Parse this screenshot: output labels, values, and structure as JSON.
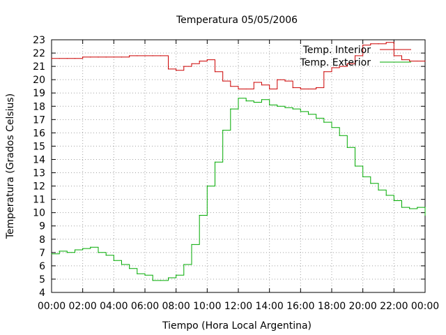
{
  "chart_data": {
    "type": "line",
    "title": "Temperatura 05/05/2006",
    "xlabel": "Tiempo (Hora Local Argentina)",
    "ylabel": "Temperatura (Grados Celsius)",
    "xlim": [
      0,
      24
    ],
    "ylim": [
      4,
      23
    ],
    "x_ticks": [
      "00:00",
      "02:00",
      "04:00",
      "06:00",
      "08:00",
      "10:00",
      "12:00",
      "14:00",
      "16:00",
      "18:00",
      "20:00",
      "22:00",
      "00:00"
    ],
    "y_ticks": [
      "4",
      "5",
      "6",
      "7",
      "8",
      "9",
      "10",
      "11",
      "12",
      "13",
      "14",
      "15",
      "16",
      "17",
      "18",
      "19",
      "20",
      "21",
      "22",
      "23"
    ],
    "grid": true,
    "legend_position": "top-right",
    "x": [
      0,
      0.5,
      1,
      1.5,
      2,
      2.5,
      3,
      3.5,
      4,
      4.5,
      5,
      5.5,
      6,
      6.5,
      7,
      7.5,
      8,
      8.5,
      9,
      9.5,
      10,
      10.5,
      11,
      11.5,
      12,
      12.5,
      13,
      13.5,
      14,
      14.5,
      15,
      15.5,
      16,
      16.5,
      17,
      17.5,
      18,
      18.5,
      19,
      19.5,
      20,
      20.5,
      21,
      21.5,
      22,
      22.5,
      23,
      23.5,
      24
    ],
    "series": [
      {
        "name": "Temp. Interior",
        "color": "#cc0000",
        "values": [
          21.6,
          21.6,
          21.6,
          21.6,
          21.7,
          21.7,
          21.7,
          21.7,
          21.7,
          21.7,
          21.8,
          21.8,
          21.8,
          21.8,
          21.8,
          20.8,
          20.7,
          21.0,
          21.2,
          21.4,
          21.5,
          20.6,
          19.9,
          19.5,
          19.3,
          19.3,
          19.8,
          19.6,
          19.3,
          20.0,
          19.9,
          19.4,
          19.3,
          19.3,
          19.4,
          20.6,
          20.9,
          21.0,
          21.2,
          21.8,
          22.6,
          22.7,
          22.7,
          22.8,
          21.8,
          21.5,
          21.4,
          21.4,
          21.4
        ]
      },
      {
        "name": "Temp. Exterior",
        "color": "#00aa00",
        "values": [
          6.9,
          7.1,
          7.0,
          7.2,
          7.3,
          7.4,
          7.0,
          6.8,
          6.4,
          6.1,
          5.8,
          5.4,
          5.3,
          4.9,
          4.9,
          5.1,
          5.3,
          6.1,
          7.6,
          9.8,
          12.0,
          13.8,
          16.2,
          17.8,
          18.6,
          18.4,
          18.3,
          18.5,
          18.1,
          18.0,
          17.9,
          17.8,
          17.6,
          17.4,
          17.1,
          16.8,
          16.4,
          15.8,
          14.9,
          13.5,
          12.7,
          12.2,
          11.7,
          11.3,
          10.9,
          10.4,
          10.3,
          10.4,
          9.8
        ]
      }
    ]
  }
}
